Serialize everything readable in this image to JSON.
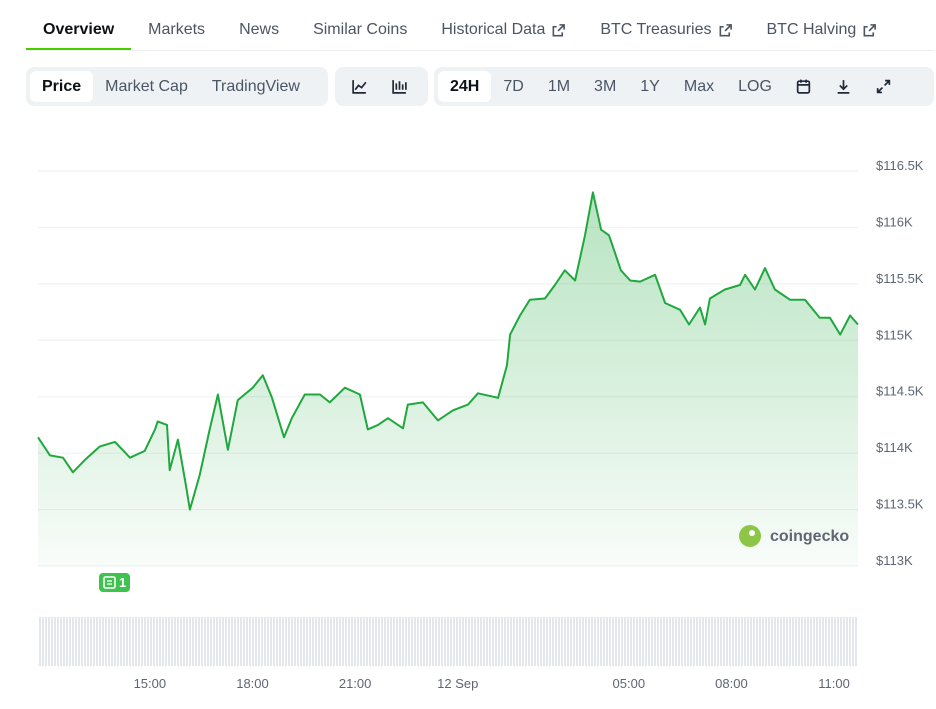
{
  "tabs": [
    {
      "label": "Overview"
    },
    {
      "label": "Markets"
    },
    {
      "label": "News"
    },
    {
      "label": "Similar Coins"
    },
    {
      "label": "Historical Data",
      "external": true
    },
    {
      "label": "BTC Treasuries",
      "external": true
    },
    {
      "label": "BTC Halving",
      "external": true
    }
  ],
  "view_buttons": [
    "Price",
    "Market Cap",
    "TradingView"
  ],
  "range_buttons": [
    "24H",
    "7D",
    "1M",
    "3M",
    "1Y",
    "Max",
    "LOG"
  ],
  "watermark": "coingecko",
  "news_marker": "1",
  "chart_data": {
    "type": "area",
    "color": "#1fa83d",
    "grid": true,
    "xlim": [
      11.73,
      35.7
    ],
    "xticks": [
      {
        "value": 15,
        "label": "15:00"
      },
      {
        "value": 18,
        "label": "18:00"
      },
      {
        "value": 21,
        "label": "21:00"
      },
      {
        "value": 24,
        "label": "12 Sep"
      },
      {
        "value": 29,
        "label": "05:00"
      },
      {
        "value": 32,
        "label": "08:00"
      },
      {
        "value": 35,
        "label": "11:00"
      }
    ],
    "ylim": [
      113000,
      116500
    ],
    "yticks": [
      {
        "value": 113000,
        "label": "$113K"
      },
      {
        "value": 113500,
        "label": "$113.5K"
      },
      {
        "value": 114000,
        "label": "$114K"
      },
      {
        "value": 114500,
        "label": "$114.5K"
      },
      {
        "value": 115000,
        "label": "$115K"
      },
      {
        "value": 115500,
        "label": "$115.5K"
      },
      {
        "value": 116000,
        "label": "$116K"
      },
      {
        "value": 116500,
        "label": "$116.5K"
      }
    ],
    "x": [
      11.73,
      12.08,
      12.46,
      12.75,
      13.1,
      13.54,
      13.98,
      14.42,
      14.85,
      15.15,
      15.23,
      15.5,
      15.58,
      15.82,
      16.05,
      16.17,
      16.46,
      16.75,
      16.99,
      17.28,
      17.57,
      18.01,
      18.3,
      18.57,
      18.92,
      19.15,
      19.53,
      19.97,
      20.26,
      20.7,
      21.14,
      21.37,
      21.67,
      21.96,
      22.4,
      22.54,
      22.98,
      23.42,
      23.86,
      24.3,
      24.59,
      25.18,
      25.44,
      25.53,
      25.82,
      26.11,
      26.55,
      26.84,
      27.13,
      27.43,
      27.72,
      27.95,
      28.19,
      28.42,
      28.77,
      29.04,
      29.33,
      29.77,
      30.06,
      30.5,
      30.76,
      31.08,
      31.23,
      31.37,
      31.81,
      32.25,
      32.4,
      32.69,
      32.98,
      33.27,
      33.71,
      34.15,
      34.58,
      34.88,
      35.18,
      35.47,
      35.7
    ],
    "values": [
      114140,
      113980,
      113960,
      113830,
      113940,
      114060,
      114100,
      113960,
      114020,
      114210,
      114280,
      114250,
      113850,
      114120,
      113720,
      113500,
      113810,
      114210,
      114520,
      114030,
      114470,
      114580,
      114690,
      114490,
      114140,
      114310,
      114520,
      114520,
      114450,
      114580,
      114520,
      114210,
      114250,
      114310,
      114220,
      114430,
      114450,
      114290,
      114380,
      114430,
      114530,
      114490,
      114780,
      115050,
      115220,
      115360,
      115370,
      115490,
      115620,
      115530,
      115930,
      116310,
      115980,
      115930,
      115620,
      115530,
      115520,
      115580,
      115330,
      115270,
      115140,
      115290,
      115140,
      115370,
      115450,
      115490,
      115580,
      115450,
      115640,
      115450,
      115360,
      115360,
      115200,
      115200,
      115050,
      115220,
      115140
    ]
  }
}
